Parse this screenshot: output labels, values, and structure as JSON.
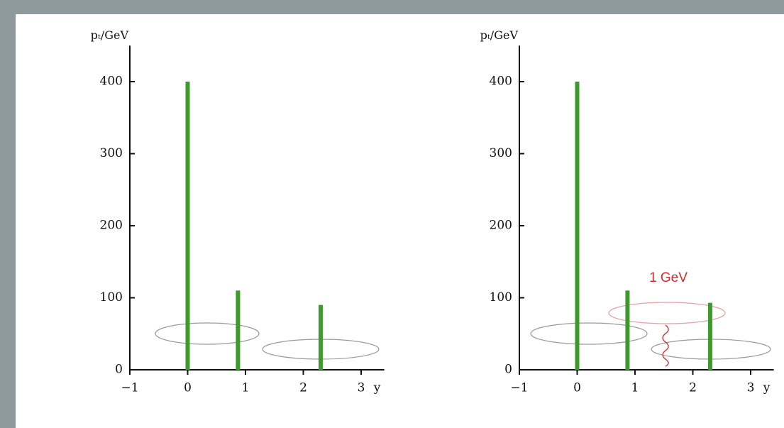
{
  "chart_data": [
    {
      "type": "bar",
      "y_label": "pₜ/GeV",
      "x_label": "y",
      "x": [
        0,
        0.87,
        2.3
      ],
      "values": [
        400,
        110,
        90
      ],
      "color": "#3c9b2c",
      "xlim": [
        -1,
        3.4
      ],
      "xticks": [
        {
          "value": -1,
          "label": "−1"
        },
        0,
        1,
        2,
        3
      ],
      "ylim": [
        0,
        450
      ],
      "yticks": [
        0,
        100,
        200,
        300,
        400
      ]
    },
    {
      "type": "bar",
      "y_label": "pₜ/GeV",
      "x_label": "y",
      "x": [
        0,
        0.87,
        2.3
      ],
      "values": [
        400,
        110,
        93
      ],
      "color": "#3c9b2c",
      "xlim": [
        -1,
        3.4
      ],
      "xticks": [
        {
          "value": -1,
          "label": "−1"
        },
        0,
        1,
        2,
        3
      ],
      "ylim": [
        0,
        450
      ],
      "yticks": [
        0,
        100,
        200,
        300,
        400
      ],
      "annotation": "1 GeV"
    }
  ]
}
